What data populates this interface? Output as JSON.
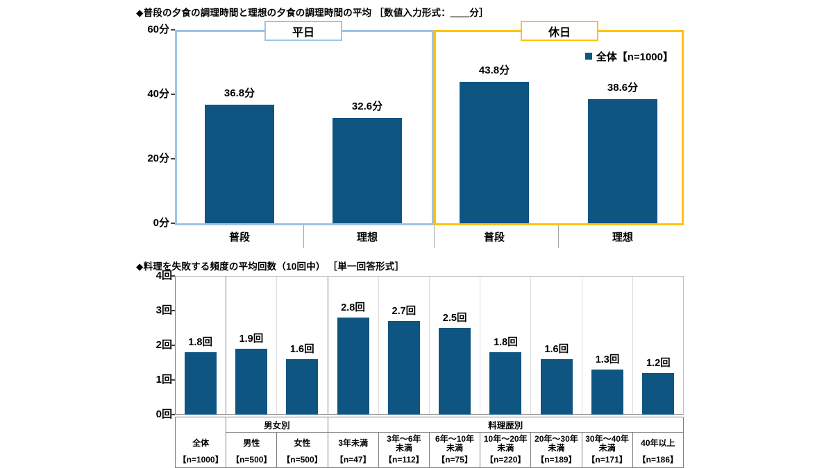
{
  "chart_data": [
    {
      "type": "bar",
      "title": "◆普段の夕食の調理時間と理想の夕食の調理時間の平均 ［数値入力形式：＿＿分］",
      "ylabel": "分",
      "ylim": [
        0,
        60
      ],
      "yticks": [
        "60分",
        "40分",
        "20分",
        "0分"
      ],
      "grid": false,
      "legend": {
        "label": "全体【n=1000】",
        "position": "top-right"
      },
      "bar_color": "#0F5582",
      "groups": [
        {
          "label": "平日",
          "frame_color": "#9DC3E6",
          "categories": [
            "普段",
            "理想"
          ],
          "values": [
            36.8,
            32.6
          ],
          "value_labels": [
            "36.8分",
            "32.6分"
          ]
        },
        {
          "label": "休日",
          "frame_color": "#FFC20E",
          "categories": [
            "普段",
            "理想"
          ],
          "values": [
            43.8,
            38.6
          ],
          "value_labels": [
            "43.8分",
            "38.6分"
          ]
        }
      ]
    },
    {
      "type": "bar",
      "title": "◆料理を失敗する頻度の平均回数（10回中） ［単一回答形式］",
      "ylabel": "回",
      "ylim": [
        0,
        4
      ],
      "yticks": [
        "4回",
        "3回",
        "2回",
        "1回",
        "0回"
      ],
      "grid": false,
      "bar_color": "#0F5582",
      "group_headers": [
        {
          "label": "男女別",
          "columns": [
            2,
            3
          ]
        },
        {
          "label": "料理歴別",
          "columns": [
            4,
            10
          ]
        }
      ],
      "categories": [
        "全体",
        "男性",
        "女性",
        "3年未満",
        "3年～6年\n未満",
        "6年～10年\n未満",
        "10年～20年\n未満",
        "20年～30年\n未満",
        "30年～40年\n未満",
        "40年以上"
      ],
      "ns": [
        "【n=1000】",
        "【n=500】",
        "【n=500】",
        "【n=47】",
        "【n=112】",
        "【n=75】",
        "【n=220】",
        "【n=189】",
        "【n=171】",
        "【n=186】"
      ],
      "values": [
        1.8,
        1.9,
        1.6,
        2.8,
        2.7,
        2.5,
        1.8,
        1.6,
        1.3,
        1.2
      ],
      "value_labels": [
        "1.8回",
        "1.9回",
        "1.6回",
        "2.8回",
        "2.7回",
        "2.5回",
        "1.8回",
        "1.6回",
        "1.3回",
        "1.2回"
      ]
    }
  ],
  "colors": {
    "bar": "#0F5582",
    "weekday_frame": "#9DC3E6",
    "holiday_frame": "#FFC20E",
    "separator": "#A6A6A6",
    "table_border": "#7F7F7F"
  }
}
